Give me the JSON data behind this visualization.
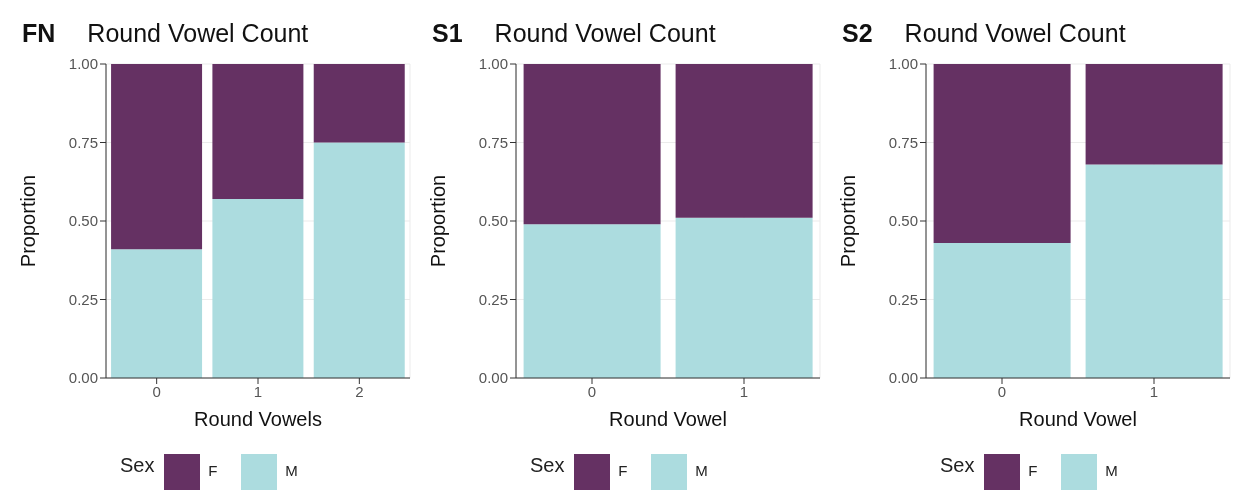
{
  "chart_data": [
    {
      "type": "bar",
      "title": "Round Vowel Count",
      "annotations": [
        "FN"
      ],
      "xlabel": "Round Vowels",
      "ylabel": "Proportion",
      "legend_title": "Sex",
      "legend": "bottom",
      "stacked": true,
      "grid": true,
      "categories": [
        "0",
        "1",
        "2"
      ],
      "ylim": [
        0,
        1
      ],
      "yticks": [
        {
          "value": 0,
          "label": "0.00"
        },
        {
          "value": 0.25,
          "label": "0.25"
        },
        {
          "value": 0.5,
          "label": "0.50"
        },
        {
          "value": 0.75,
          "label": "0.75"
        },
        {
          "value": 1,
          "label": "1.00"
        }
      ],
      "series": [
        {
          "name": "M",
          "color": "#acdcdf",
          "values": [
            0.41,
            0.57,
            0.75
          ]
        },
        {
          "name": "F",
          "color": "#653163",
          "values": [
            0.59,
            0.43,
            0.25
          ]
        }
      ]
    },
    {
      "type": "bar",
      "title": "Round Vowel Count",
      "annotations": [
        "S1"
      ],
      "xlabel": "Round Vowel",
      "ylabel": "Proportion",
      "legend_title": "Sex",
      "legend": "bottom",
      "stacked": true,
      "grid": true,
      "categories": [
        "0",
        "1"
      ],
      "ylim": [
        0,
        1
      ],
      "yticks": [
        {
          "value": 0,
          "label": "0.00"
        },
        {
          "value": 0.25,
          "label": "0.25"
        },
        {
          "value": 0.5,
          "label": "0.50"
        },
        {
          "value": 0.75,
          "label": "0.75"
        },
        {
          "value": 1,
          "label": "1.00"
        }
      ],
      "series": [
        {
          "name": "M",
          "color": "#acdcdf",
          "values": [
            0.49,
            0.51
          ]
        },
        {
          "name": "F",
          "color": "#653163",
          "values": [
            0.51,
            0.49
          ]
        }
      ]
    },
    {
      "type": "bar",
      "title": "Round Vowel Count",
      "annotations": [
        "S2"
      ],
      "xlabel": "Round Vowel",
      "ylabel": "Proportion",
      "legend_title": "Sex",
      "legend": "bottom",
      "stacked": true,
      "grid": true,
      "categories": [
        "0",
        "1"
      ],
      "ylim": [
        0,
        1
      ],
      "yticks": [
        {
          "value": 0,
          "label": "0.00"
        },
        {
          "value": 0.25,
          "label": "0.25"
        },
        {
          "value": 0.5,
          "label": "0.50"
        },
        {
          "value": 0.75,
          "label": "0.75"
        },
        {
          "value": 1,
          "label": "1.00"
        }
      ],
      "series": [
        {
          "name": "M",
          "color": "#acdcdf",
          "values": [
            0.43,
            0.68
          ]
        },
        {
          "name": "F",
          "color": "#653163",
          "values": [
            0.57,
            0.32
          ]
        }
      ]
    }
  ]
}
